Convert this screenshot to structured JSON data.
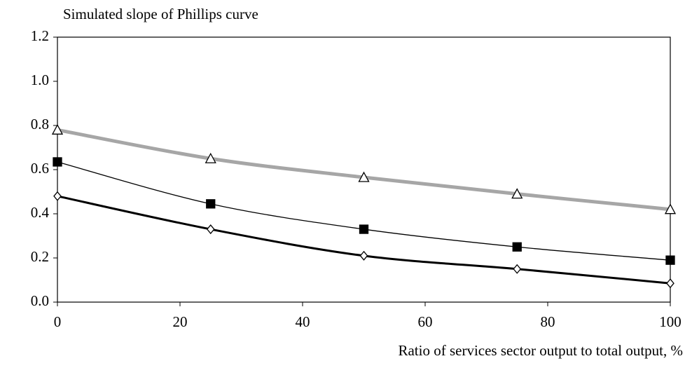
{
  "chart_data": {
    "type": "line",
    "title": "Simulated slope of Phillips curve",
    "x_label": "Ratio of services sector output to total output, %",
    "x": [
      0,
      25,
      50,
      75,
      100
    ],
    "series": [
      {
        "color": "#a6a6a6",
        "line_width": 5,
        "marker": "triangle",
        "marker_fill": "#ffffff",
        "values": [
          0.78,
          0.65,
          0.565,
          0.49,
          0.42
        ]
      },
      {
        "color": "#000000",
        "line_width": 1.3,
        "marker": "square",
        "marker_fill": "#000000",
        "values": [
          0.635,
          0.445,
          0.33,
          0.25,
          0.19
        ]
      },
      {
        "color": "#000000",
        "line_width": 3,
        "marker": "diamond",
        "marker_fill": "#ffffff",
        "values": [
          0.48,
          0.33,
          0.21,
          0.15,
          0.085
        ]
      }
    ],
    "xlim": [
      0,
      100
    ],
    "xticks": [
      0,
      20,
      40,
      60,
      80,
      100
    ],
    "ylim": [
      0,
      1.2
    ],
    "yticks": [
      {
        "value": 0,
        "label": "0.0"
      },
      0.2,
      0.4,
      0.6,
      0.8,
      {
        "value": 1,
        "label": "1.0"
      },
      1.2
    ],
    "smooth": true
  }
}
